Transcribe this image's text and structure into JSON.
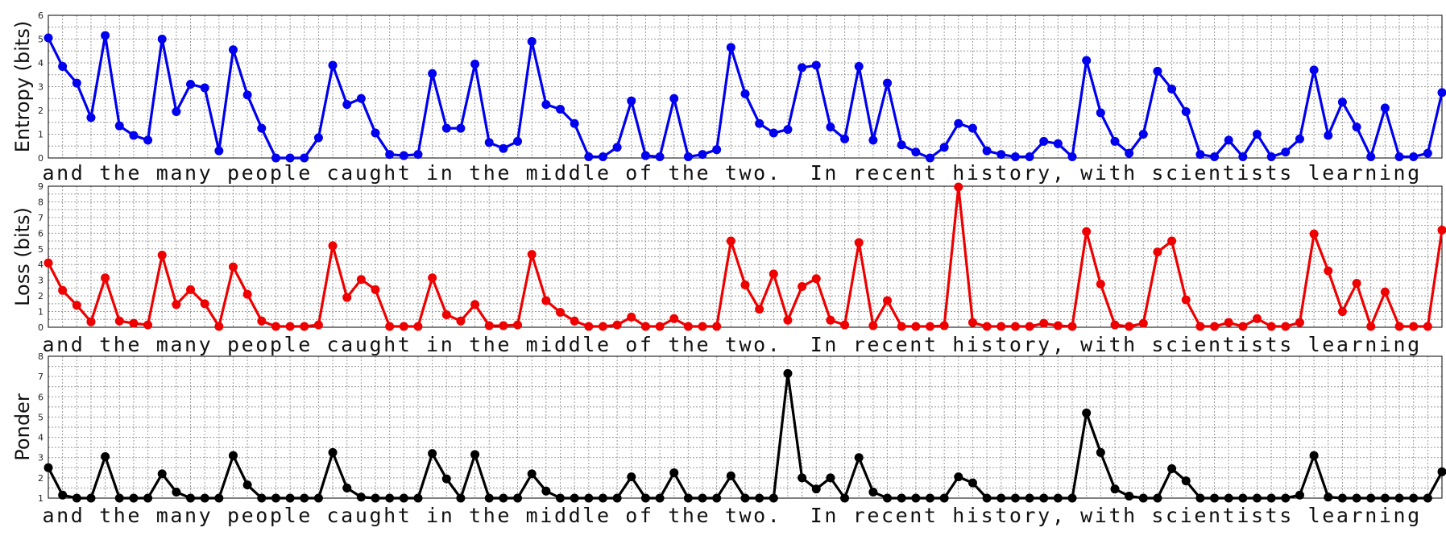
{
  "chart_data": [
    {
      "type": "line",
      "ylabel": "Entropy (bits)",
      "ylim": [
        0,
        6
      ],
      "yticks": [
        "0",
        "1",
        "2",
        "3",
        "4",
        "5",
        "6"
      ],
      "color": "#0000ee",
      "text": "and the many people caught in the middle of the two.  In recent history, with scientists learning",
      "grid": true,
      "series": [
        {
          "values": [
            5.05,
            3.85,
            3.15,
            1.7,
            5.15,
            1.35,
            0.95,
            0.75,
            5.0,
            1.95,
            3.1,
            2.95,
            0.3,
            4.55,
            2.65,
            1.25,
            0.0,
            0.0,
            0.0,
            0.85,
            3.9,
            2.25,
            2.5,
            1.05,
            0.15,
            0.1,
            0.15,
            3.55,
            1.25,
            1.25,
            3.95,
            0.65,
            0.4,
            0.7,
            4.9,
            2.25,
            2.05,
            1.45,
            0.05,
            0.05,
            0.45,
            2.4,
            0.1,
            0.05,
            2.5,
            0.05,
            0.15,
            0.35,
            4.65,
            2.7,
            1.45,
            1.05,
            1.2,
            3.8,
            3.9,
            1.3,
            0.8,
            3.85,
            0.75,
            3.15,
            0.55,
            0.25,
            0.0,
            0.45,
            1.45,
            1.25,
            0.3,
            0.15,
            0.05,
            0.05,
            0.7,
            0.6,
            0.05,
            4.1,
            1.9,
            0.7,
            0.2,
            1.0,
            3.65,
            2.9,
            1.95,
            0.15,
            0.05,
            0.75,
            0.05,
            1.0,
            0.05,
            0.25,
            0.8,
            3.7,
            0.95,
            2.35,
            1.3,
            0.05,
            2.1,
            0.05,
            0.05,
            0.2,
            2.75
          ]
        }
      ]
    },
    {
      "type": "line",
      "ylabel": "Loss (bits)",
      "ylim": [
        0,
        9
      ],
      "yticks": [
        "0",
        "1",
        "2",
        "3",
        "4",
        "5",
        "6",
        "7",
        "8",
        "9"
      ],
      "color": "#ee0000",
      "text": "and the many people caught in the middle of the two.  In recent history, with scientists learning",
      "grid": true,
      "series": [
        {
          "values": [
            4.1,
            2.35,
            1.4,
            0.35,
            3.15,
            0.4,
            0.25,
            0.15,
            4.6,
            1.45,
            2.4,
            1.5,
            0.05,
            3.85,
            2.1,
            0.4,
            0.05,
            0.05,
            0.05,
            0.15,
            5.2,
            1.9,
            3.05,
            2.4,
            0.05,
            0.05,
            0.05,
            3.15,
            0.8,
            0.4,
            1.45,
            0.1,
            0.1,
            0.15,
            4.65,
            1.7,
            0.95,
            0.4,
            0.05,
            0.05,
            0.15,
            0.65,
            0.05,
            0.05,
            0.55,
            0.05,
            0.05,
            0.05,
            5.5,
            2.7,
            1.15,
            3.4,
            0.45,
            2.6,
            3.1,
            0.45,
            0.15,
            5.4,
            0.1,
            1.7,
            0.05,
            0.05,
            0.05,
            0.1,
            8.95,
            0.3,
            0.05,
            0.05,
            0.05,
            0.05,
            0.25,
            0.1,
            0.05,
            6.1,
            2.75,
            0.15,
            0.05,
            0.25,
            4.8,
            5.5,
            1.75,
            0.05,
            0.05,
            0.3,
            0.05,
            0.55,
            0.05,
            0.05,
            0.3,
            5.95,
            3.6,
            1.0,
            2.8,
            0.05,
            2.25,
            0.05,
            0.05,
            0.05,
            6.2
          ]
        }
      ]
    },
    {
      "type": "line",
      "ylabel": "Ponder",
      "ylim": [
        1,
        8
      ],
      "yticks": [
        "1",
        "2",
        "3",
        "4",
        "5",
        "6",
        "7",
        "8"
      ],
      "color": "#000000",
      "text": "and the many people caught in the middle of the two.  In recent history, with scientists learning",
      "grid": true,
      "series": [
        {
          "values": [
            2.5,
            1.15,
            1.0,
            1.0,
            3.05,
            1.0,
            1.0,
            1.0,
            2.2,
            1.3,
            1.0,
            1.0,
            1.0,
            3.1,
            1.65,
            1.0,
            1.0,
            1.0,
            1.0,
            1.0,
            3.25,
            1.5,
            1.05,
            1.0,
            1.0,
            1.0,
            1.0,
            3.2,
            1.95,
            1.0,
            3.15,
            1.0,
            1.0,
            1.0,
            2.2,
            1.35,
            1.0,
            1.0,
            1.0,
            1.0,
            1.0,
            2.05,
            1.0,
            1.0,
            2.25,
            1.0,
            1.0,
            1.0,
            2.1,
            1.0,
            1.0,
            1.0,
            7.15,
            2.0,
            1.45,
            2.0,
            1.0,
            3.0,
            1.3,
            1.0,
            1.0,
            1.0,
            1.0,
            1.0,
            2.05,
            1.75,
            1.0,
            1.0,
            1.0,
            1.0,
            1.0,
            1.0,
            1.0,
            5.2,
            3.25,
            1.45,
            1.1,
            1.0,
            1.0,
            2.45,
            1.85,
            1.0,
            1.0,
            1.0,
            1.0,
            1.0,
            1.0,
            1.0,
            1.15,
            3.1,
            1.05,
            1.0,
            1.0,
            1.0,
            1.0,
            1.0,
            1.0,
            1.0,
            2.3
          ]
        }
      ]
    }
  ]
}
